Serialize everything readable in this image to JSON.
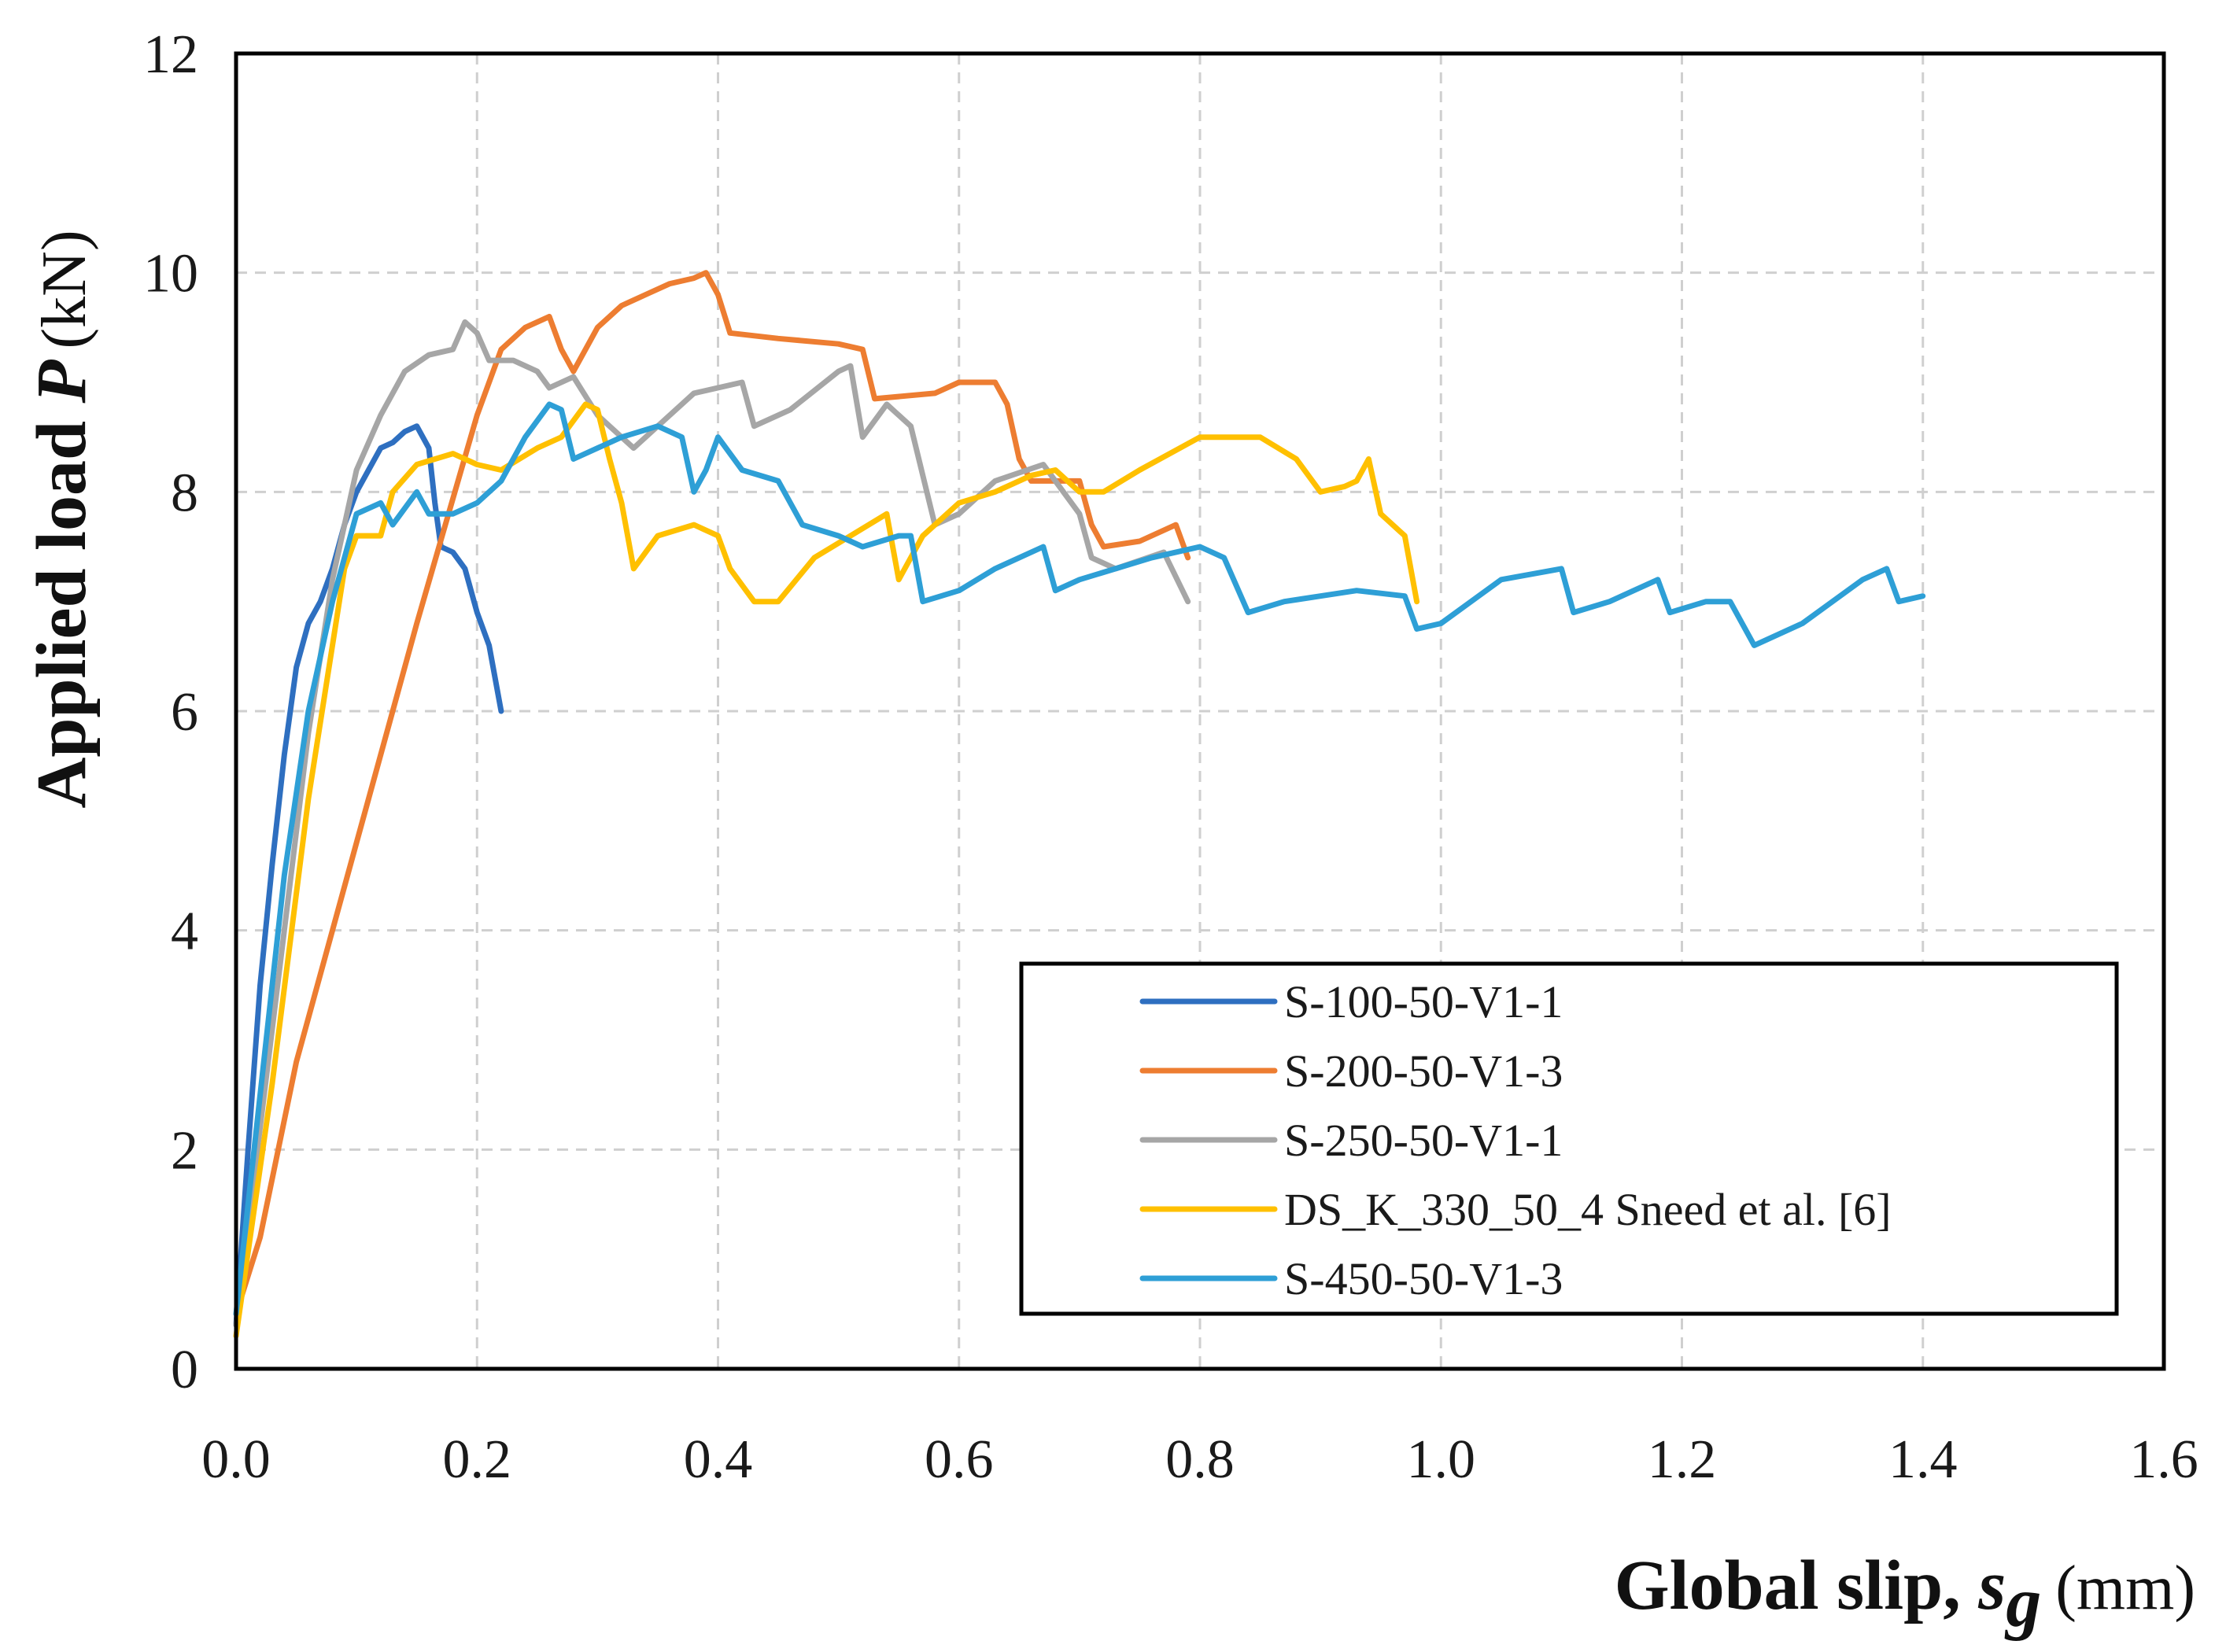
{
  "chart_data": {
    "type": "line",
    "title": "",
    "xlabel": {
      "main": "Global slip, ",
      "var": "s",
      "sub": "g",
      "unit": "(mm)"
    },
    "ylabel": {
      "main": "Applied  load ",
      "var": "P",
      "unit": "(kN)"
    },
    "xlim": [
      0,
      1.6
    ],
    "ylim": [
      0,
      12
    ],
    "xticks": [
      0,
      0.2,
      0.4,
      0.6,
      0.8,
      1.0,
      1.2,
      1.4,
      1.6
    ],
    "xtick_labels": [
      "0.0",
      "0.2",
      "0.4",
      "0.6",
      "0.8",
      "1.0",
      "1.2",
      "1.4",
      "1.6"
    ],
    "yticks": [
      0,
      2,
      4,
      6,
      8,
      10,
      12
    ],
    "ytick_labels": [
      "0",
      "2",
      "4",
      "6",
      "8",
      "10",
      "12"
    ],
    "grid": true,
    "legend_position": "bottom-right",
    "series": [
      {
        "name": "S-100-50-V1-1",
        "color": "#2e6fc0",
        "points": [
          [
            0,
            0.4
          ],
          [
            0.01,
            2.0
          ],
          [
            0.02,
            3.5
          ],
          [
            0.03,
            4.6
          ],
          [
            0.04,
            5.6
          ],
          [
            0.05,
            6.4
          ],
          [
            0.06,
            6.8
          ],
          [
            0.07,
            7.0
          ],
          [
            0.08,
            7.3
          ],
          [
            0.09,
            7.7
          ],
          [
            0.1,
            8.0
          ],
          [
            0.11,
            8.2
          ],
          [
            0.12,
            8.4
          ],
          [
            0.13,
            8.45
          ],
          [
            0.14,
            8.55
          ],
          [
            0.15,
            8.6
          ],
          [
            0.16,
            8.4
          ],
          [
            0.165,
            7.9
          ],
          [
            0.17,
            7.5
          ],
          [
            0.18,
            7.45
          ],
          [
            0.19,
            7.3
          ],
          [
            0.2,
            6.9
          ],
          [
            0.21,
            6.6
          ],
          [
            0.22,
            6.0
          ]
        ]
      },
      {
        "name": "S-200-50-V1-3",
        "color": "#ed7d31",
        "points": [
          [
            0,
            0.5
          ],
          [
            0.02,
            1.2
          ],
          [
            0.05,
            2.8
          ],
          [
            0.1,
            4.8
          ],
          [
            0.15,
            6.8
          ],
          [
            0.2,
            8.7
          ],
          [
            0.22,
            9.3
          ],
          [
            0.24,
            9.5
          ],
          [
            0.26,
            9.6
          ],
          [
            0.27,
            9.3
          ],
          [
            0.28,
            9.1
          ],
          [
            0.3,
            9.5
          ],
          [
            0.32,
            9.7
          ],
          [
            0.34,
            9.8
          ],
          [
            0.36,
            9.9
          ],
          [
            0.38,
            9.95
          ],
          [
            0.39,
            10.0
          ],
          [
            0.4,
            9.8
          ],
          [
            0.41,
            9.45
          ],
          [
            0.45,
            9.4
          ],
          [
            0.5,
            9.35
          ],
          [
            0.52,
            9.3
          ],
          [
            0.53,
            8.85
          ],
          [
            0.58,
            8.9
          ],
          [
            0.6,
            9.0
          ],
          [
            0.63,
            9.0
          ],
          [
            0.64,
            8.8
          ],
          [
            0.65,
            8.3
          ],
          [
            0.66,
            8.1
          ],
          [
            0.7,
            8.1
          ],
          [
            0.71,
            7.7
          ],
          [
            0.72,
            7.5
          ],
          [
            0.75,
            7.55
          ],
          [
            0.78,
            7.7
          ],
          [
            0.79,
            7.4
          ]
        ]
      },
      {
        "name": "S-250-50-V1-1",
        "color": "#a6a6a6",
        "points": [
          [
            0,
            0.4
          ],
          [
            0.02,
            2.2
          ],
          [
            0.04,
            4.0
          ],
          [
            0.06,
            5.8
          ],
          [
            0.08,
            7.2
          ],
          [
            0.1,
            8.2
          ],
          [
            0.12,
            8.7
          ],
          [
            0.14,
            9.1
          ],
          [
            0.16,
            9.25
          ],
          [
            0.18,
            9.3
          ],
          [
            0.19,
            9.55
          ],
          [
            0.2,
            9.45
          ],
          [
            0.21,
            9.2
          ],
          [
            0.23,
            9.2
          ],
          [
            0.25,
            9.1
          ],
          [
            0.26,
            8.95
          ],
          [
            0.28,
            9.05
          ],
          [
            0.3,
            8.7
          ],
          [
            0.32,
            8.5
          ],
          [
            0.33,
            8.4
          ],
          [
            0.35,
            8.6
          ],
          [
            0.38,
            8.9
          ],
          [
            0.42,
            9.0
          ],
          [
            0.43,
            8.6
          ],
          [
            0.46,
            8.75
          ],
          [
            0.5,
            9.1
          ],
          [
            0.51,
            9.15
          ],
          [
            0.52,
            8.5
          ],
          [
            0.54,
            8.8
          ],
          [
            0.56,
            8.6
          ],
          [
            0.58,
            7.7
          ],
          [
            0.6,
            7.8
          ],
          [
            0.63,
            8.1
          ],
          [
            0.67,
            8.25
          ],
          [
            0.7,
            7.8
          ],
          [
            0.71,
            7.4
          ],
          [
            0.73,
            7.3
          ],
          [
            0.77,
            7.45
          ],
          [
            0.79,
            7.0
          ]
        ]
      },
      {
        "name": "DS_K_330_50_4 Sneed et al. [6]",
        "color": "#ffc000",
        "points": [
          [
            0,
            0.3
          ],
          [
            0.03,
            2.6
          ],
          [
            0.06,
            5.2
          ],
          [
            0.09,
            7.3
          ],
          [
            0.1,
            7.6
          ],
          [
            0.12,
            7.6
          ],
          [
            0.13,
            8.0
          ],
          [
            0.15,
            8.25
          ],
          [
            0.18,
            8.35
          ],
          [
            0.2,
            8.25
          ],
          [
            0.22,
            8.2
          ],
          [
            0.25,
            8.4
          ],
          [
            0.27,
            8.5
          ],
          [
            0.29,
            8.8
          ],
          [
            0.3,
            8.75
          ],
          [
            0.31,
            8.3
          ],
          [
            0.32,
            7.9
          ],
          [
            0.33,
            7.3
          ],
          [
            0.35,
            7.6
          ],
          [
            0.38,
            7.7
          ],
          [
            0.4,
            7.6
          ],
          [
            0.41,
            7.3
          ],
          [
            0.43,
            7.0
          ],
          [
            0.45,
            7.0
          ],
          [
            0.48,
            7.4
          ],
          [
            0.51,
            7.6
          ],
          [
            0.54,
            7.8
          ],
          [
            0.55,
            7.2
          ],
          [
            0.57,
            7.6
          ],
          [
            0.6,
            7.9
          ],
          [
            0.63,
            8.0
          ],
          [
            0.66,
            8.15
          ],
          [
            0.68,
            8.2
          ],
          [
            0.7,
            8.0
          ],
          [
            0.72,
            8.0
          ],
          [
            0.75,
            8.2
          ],
          [
            0.8,
            8.5
          ],
          [
            0.85,
            8.5
          ],
          [
            0.88,
            8.3
          ],
          [
            0.9,
            8.0
          ],
          [
            0.92,
            8.05
          ],
          [
            0.93,
            8.1
          ],
          [
            0.94,
            8.3
          ],
          [
            0.95,
            7.8
          ],
          [
            0.97,
            7.6
          ],
          [
            0.98,
            7.0
          ]
        ]
      },
      {
        "name": "S-450-50-V1-3",
        "color": "#2e9fd6",
        "points": [
          [
            0,
            0.5
          ],
          [
            0.02,
            2.5
          ],
          [
            0.04,
            4.5
          ],
          [
            0.06,
            6.0
          ],
          [
            0.08,
            7.0
          ],
          [
            0.1,
            7.8
          ],
          [
            0.12,
            7.9
          ],
          [
            0.13,
            7.7
          ],
          [
            0.15,
            8.0
          ],
          [
            0.16,
            7.8
          ],
          [
            0.18,
            7.8
          ],
          [
            0.2,
            7.9
          ],
          [
            0.22,
            8.1
          ],
          [
            0.24,
            8.5
          ],
          [
            0.26,
            8.8
          ],
          [
            0.27,
            8.75
          ],
          [
            0.28,
            8.3
          ],
          [
            0.3,
            8.4
          ],
          [
            0.32,
            8.5
          ],
          [
            0.35,
            8.6
          ],
          [
            0.37,
            8.5
          ],
          [
            0.38,
            8.0
          ],
          [
            0.39,
            8.2
          ],
          [
            0.4,
            8.5
          ],
          [
            0.42,
            8.2
          ],
          [
            0.45,
            8.1
          ],
          [
            0.47,
            7.7
          ],
          [
            0.5,
            7.6
          ],
          [
            0.52,
            7.5
          ],
          [
            0.55,
            7.6
          ],
          [
            0.56,
            7.6
          ],
          [
            0.57,
            7.0
          ],
          [
            0.6,
            7.1
          ],
          [
            0.63,
            7.3
          ],
          [
            0.67,
            7.5
          ],
          [
            0.68,
            7.1
          ],
          [
            0.7,
            7.2
          ],
          [
            0.73,
            7.3
          ],
          [
            0.76,
            7.4
          ],
          [
            0.8,
            7.5
          ],
          [
            0.82,
            7.4
          ],
          [
            0.84,
            6.9
          ],
          [
            0.87,
            7.0
          ],
          [
            0.9,
            7.05
          ],
          [
            0.93,
            7.1
          ],
          [
            0.97,
            7.05
          ],
          [
            0.98,
            6.75
          ],
          [
            1.0,
            6.8
          ],
          [
            1.05,
            7.2
          ],
          [
            1.1,
            7.3
          ],
          [
            1.11,
            6.9
          ],
          [
            1.14,
            7.0
          ],
          [
            1.16,
            7.1
          ],
          [
            1.18,
            7.2
          ],
          [
            1.19,
            6.9
          ],
          [
            1.22,
            7.0
          ],
          [
            1.24,
            7.0
          ],
          [
            1.26,
            6.6
          ],
          [
            1.3,
            6.8
          ],
          [
            1.35,
            7.2
          ],
          [
            1.37,
            7.3
          ],
          [
            1.38,
            7.0
          ],
          [
            1.4,
            7.05
          ]
        ]
      }
    ]
  }
}
